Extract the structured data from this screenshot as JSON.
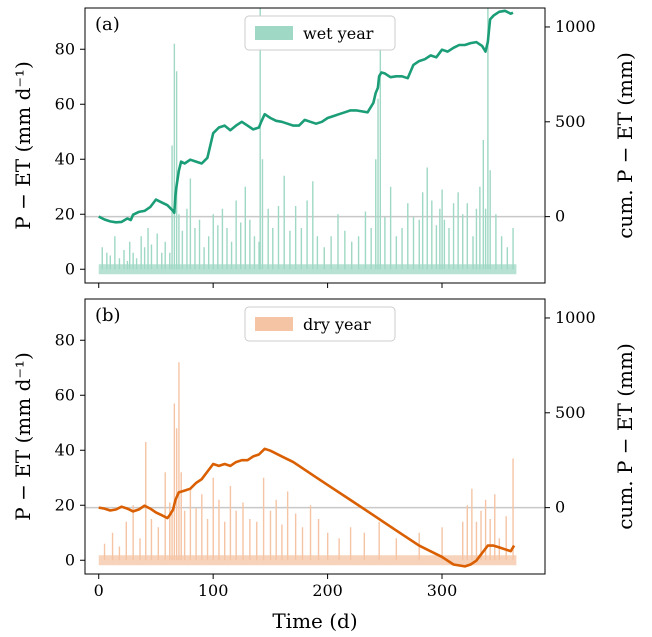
{
  "chart_data": [
    {
      "type": "bar",
      "panel_label": "(a)",
      "legend": "wet year",
      "bar_color": "#9fd8c4",
      "line_color": "#1b9e77",
      "xlabel": "",
      "ylabel_left": "P − ET (mm d⁻¹)",
      "ylabel_right": "cum. P − ET (mm)",
      "xlim": [
        -12,
        390
      ],
      "ylim_left": [
        -5,
        95
      ],
      "ylim_right": [
        -350,
        1100
      ],
      "xticks": [
        0,
        100,
        200,
        300
      ],
      "yticks_left": [
        0,
        20,
        40,
        60,
        80
      ],
      "yticks_right": [
        0,
        500,
        1000
      ],
      "zero_ref_right": 0,
      "bars": {
        "x": [
          3,
          7,
          10,
          14,
          18,
          22,
          25,
          27,
          30,
          33,
          37,
          40,
          43,
          46,
          51,
          55,
          58,
          62,
          64,
          66,
          68,
          70,
          73,
          77,
          80,
          84,
          88,
          92,
          96,
          100,
          104,
          108,
          112,
          116,
          120,
          124,
          128,
          132,
          136,
          140,
          141,
          143,
          148,
          152,
          157,
          162,
          167,
          172,
          177,
          182,
          187,
          191,
          197,
          203,
          209,
          215,
          221,
          227,
          233,
          238,
          242,
          244,
          246,
          250,
          255,
          260,
          265,
          270,
          275,
          280,
          283,
          287,
          291,
          295,
          298,
          300,
          302,
          306,
          310,
          314,
          318,
          322,
          327,
          330,
          333,
          336,
          338,
          340,
          342,
          347,
          352,
          357,
          362
        ],
        "y": [
          8,
          6,
          5,
          12,
          4,
          7,
          3,
          10,
          6,
          4,
          12,
          8,
          15,
          9,
          13,
          6,
          10,
          6,
          45,
          82,
          72,
          20,
          14,
          22,
          33,
          15,
          18,
          8,
          12,
          20,
          16,
          22,
          15,
          10,
          25,
          17,
          30,
          18,
          12,
          10,
          95,
          40,
          22,
          15,
          23,
          34,
          14,
          23,
          15,
          25,
          32,
          12,
          8,
          12,
          20,
          14,
          10,
          12,
          21,
          15,
          40,
          62,
          80,
          19,
          30,
          12,
          15,
          24,
          19,
          18,
          28,
          37,
          25,
          16,
          22,
          29,
          18,
          15,
          24,
          28,
          20,
          24,
          12,
          22,
          30,
          47,
          22,
          95,
          36,
          20,
          12,
          8,
          15
        ]
      },
      "cumulative": {
        "x": [
          0,
          5,
          10,
          15,
          20,
          25,
          28,
          30,
          35,
          40,
          45,
          50,
          55,
          60,
          65,
          66,
          67,
          68,
          70,
          72,
          75,
          80,
          85,
          90,
          95,
          100,
          105,
          110,
          115,
          120,
          125,
          130,
          135,
          140,
          142,
          145,
          150,
          155,
          160,
          165,
          170,
          175,
          180,
          185,
          190,
          195,
          200,
          205,
          210,
          215,
          220,
          225,
          230,
          235,
          240,
          242,
          244,
          245,
          247,
          250,
          255,
          260,
          265,
          270,
          275,
          280,
          285,
          290,
          295,
          300,
          305,
          310,
          315,
          320,
          325,
          330,
          335,
          338,
          340,
          342,
          345,
          350,
          355,
          360,
          362
        ],
        "y": [
          0,
          -15,
          -25,
          -30,
          -28,
          -10,
          -18,
          10,
          25,
          30,
          50,
          90,
          75,
          60,
          30,
          20,
          110,
          160,
          240,
          290,
          280,
          300,
          290,
          280,
          310,
          440,
          470,
          480,
          455,
          480,
          500,
          480,
          460,
          470,
          500,
          540,
          520,
          505,
          500,
          490,
          480,
          480,
          510,
          500,
          490,
          500,
          520,
          530,
          540,
          550,
          560,
          560,
          555,
          550,
          600,
          650,
          680,
          740,
          760,
          755,
          735,
          740,
          740,
          730,
          800,
          820,
          830,
          850,
          840,
          880,
          870,
          890,
          905,
          905,
          915,
          920,
          900,
          870,
          920,
          1040,
          1060,
          1080,
          1085,
          1070,
          1075
        ]
      }
    },
    {
      "type": "bar",
      "panel_label": "(b)",
      "legend": "dry year",
      "bar_color": "#f5c4a4",
      "line_color": "#d95f02",
      "xlabel": "Time (d)",
      "ylabel_left": "P − ET (mm d⁻¹)",
      "ylabel_right": "cum. P − ET (mm)",
      "xlim": [
        -12,
        390
      ],
      "ylim_left": [
        -5,
        95
      ],
      "ylim_right": [
        -350,
        1100
      ],
      "xticks": [
        0,
        100,
        200,
        300
      ],
      "yticks_left": [
        0,
        20,
        40,
        60,
        80
      ],
      "yticks_right": [
        0,
        500,
        1000
      ],
      "zero_ref_right": 0,
      "bars": {
        "x": [
          5,
          12,
          18,
          24,
          30,
          36,
          41,
          46,
          52,
          58,
          62,
          64,
          66,
          68,
          70,
          72,
          75,
          80,
          85,
          90,
          95,
          100,
          105,
          110,
          115,
          120,
          126,
          132,
          138,
          144,
          150,
          155,
          160,
          165,
          172,
          178,
          185,
          192,
          200,
          210,
          220,
          232,
          245,
          260,
          280,
          300,
          318,
          322,
          326,
          330,
          334,
          338,
          342,
          346,
          350,
          356,
          362
        ],
        "y": [
          6,
          10,
          5,
          14,
          20,
          8,
          43,
          15,
          12,
          32,
          21,
          17,
          57,
          48,
          72,
          32,
          18,
          26,
          19,
          24,
          15,
          30,
          22,
          14,
          27,
          18,
          21,
          15,
          14,
          30,
          18,
          22,
          13,
          25,
          17,
          12,
          20,
          15,
          10,
          8,
          12,
          10,
          14,
          8,
          10,
          12,
          14,
          20,
          26,
          14,
          18,
          22,
          15,
          24,
          8,
          16,
          37
        ]
      },
      "cumulative": {
        "x": [
          0,
          5,
          10,
          15,
          20,
          25,
          30,
          35,
          40,
          45,
          50,
          55,
          60,
          62,
          65,
          67,
          70,
          75,
          80,
          85,
          90,
          95,
          100,
          105,
          110,
          115,
          120,
          125,
          130,
          135,
          140,
          145,
          150,
          160,
          170,
          180,
          190,
          200,
          220,
          240,
          260,
          280,
          300,
          310,
          320,
          325,
          330,
          335,
          340,
          345,
          350,
          355,
          360,
          363
        ],
        "y": [
          0,
          -5,
          -15,
          -10,
          5,
          -5,
          -20,
          -10,
          10,
          -5,
          -25,
          -40,
          -55,
          -40,
          -10,
          40,
          80,
          90,
          100,
          130,
          150,
          190,
          230,
          220,
          230,
          220,
          240,
          250,
          250,
          270,
          280,
          310,
          300,
          270,
          240,
          200,
          160,
          120,
          40,
          -40,
          -120,
          -200,
          -260,
          -300,
          -310,
          -300,
          -280,
          -240,
          -200,
          -200,
          -210,
          -220,
          -230,
          -200
        ]
      }
    }
  ]
}
